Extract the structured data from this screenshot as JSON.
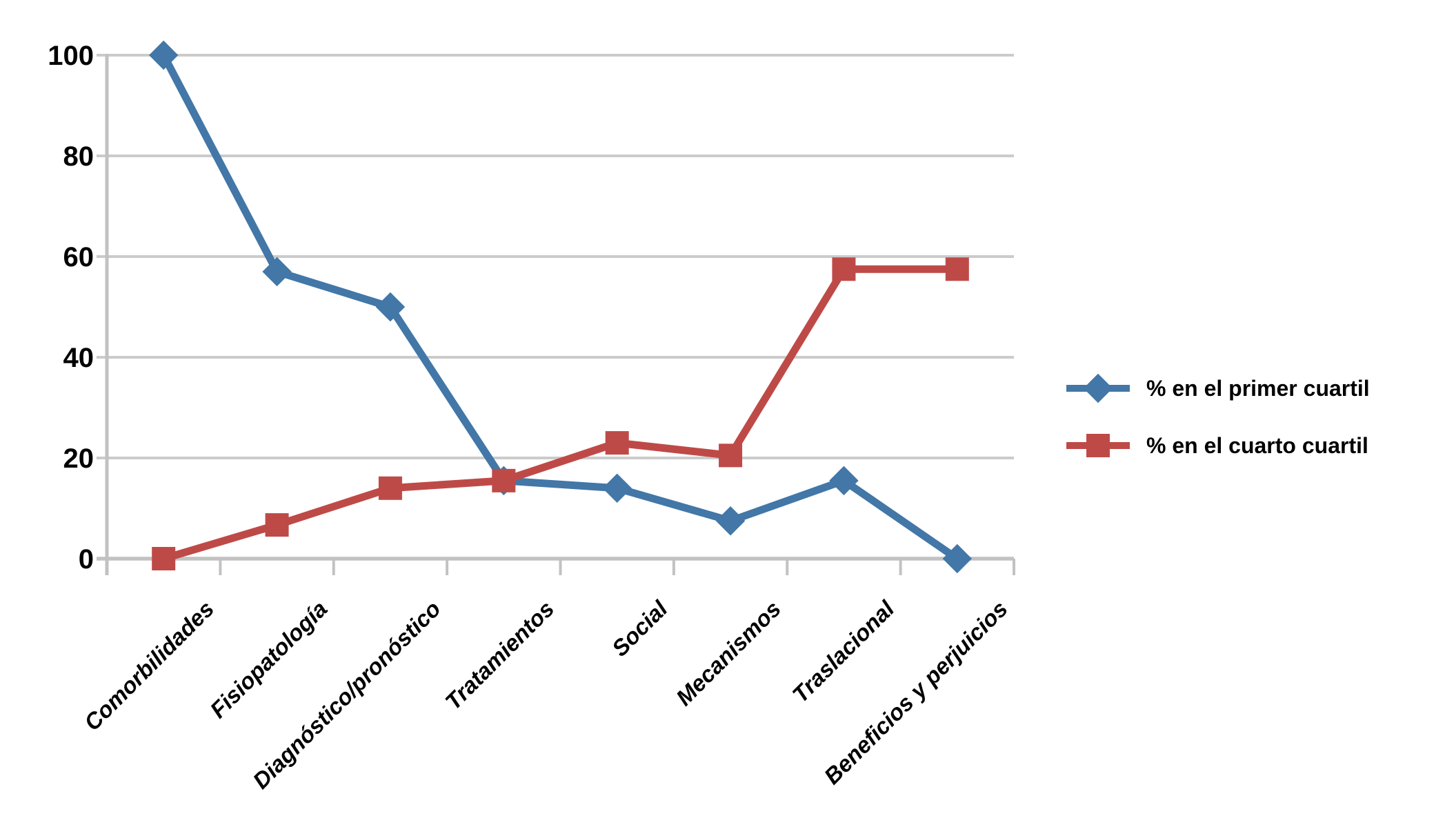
{
  "chart_data": {
    "type": "line",
    "categories": [
      "Comorbilidades",
      "Fisiopatología",
      "Diagnóstico/pronóstico",
      "Tratamientos",
      "Social",
      "Mecanismos",
      "Traslacional",
      "Beneficios y perjuicios"
    ],
    "series": [
      {
        "name": "% en el primer cuartil",
        "marker": "diamond",
        "color": "#4277A7",
        "values": [
          100,
          57,
          50,
          15.5,
          14,
          7.5,
          15.5,
          0
        ]
      },
      {
        "name": "% en el cuarto cuartil",
        "marker": "square",
        "color": "#BE4A47",
        "values": [
          0,
          6.7,
          14,
          15.5,
          23,
          20.5,
          57.5,
          57.5
        ]
      }
    ],
    "title": "",
    "xlabel": "",
    "ylabel": "",
    "ylim": [
      0,
      100
    ],
    "yticks": [
      0,
      20,
      40,
      60,
      80,
      100
    ],
    "grid": true,
    "legend_position": "right",
    "colors": {
      "gridline": "#CBCBCB",
      "axis": "#C2C2C2",
      "text": "#000000",
      "background": "#FFFFFF"
    }
  }
}
